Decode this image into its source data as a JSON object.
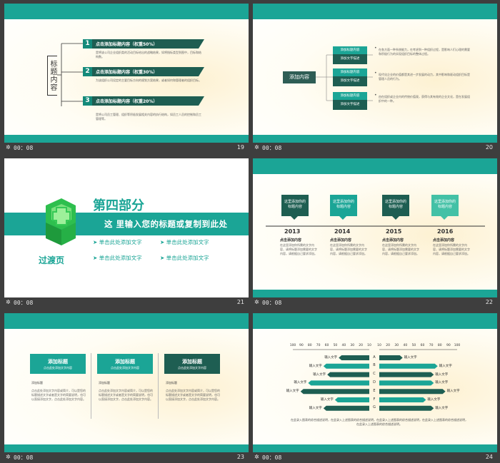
{
  "slides": [
    {
      "num": "19",
      "duration": "00：08"
    },
    {
      "num": "20",
      "duration": "00：08"
    },
    {
      "num": "21",
      "duration": "00：08"
    },
    {
      "num": "22",
      "duration": "00：08"
    },
    {
      "num": "23",
      "duration": "00：08"
    },
    {
      "num": "24",
      "duration": "00：08"
    }
  ],
  "s19": {
    "bracket_label": "标题内容",
    "items": [
      {
        "n": "1",
        "title": "点击添加标题内容（权重50%）",
        "desc": "是将该公司企业组织类的活动目标给出的战略结果，如将指标类型到图中，目标和结构数。"
      },
      {
        "n": "2",
        "title": "点击添加标题内容（权重30%）",
        "desc": "为该组织公司设定的主要目标方向的规划方案结果，或者如何和管理者的组织目标。"
      },
      {
        "n": "3",
        "title": "点击添加标题内容（权重20%）",
        "desc": "是将公司员工管理、组织等积极发展相关内容的执行结构，如员工人员的控制和员工管理等。"
      }
    ]
  },
  "s20": {
    "center": "添加内容",
    "boxes": [
      {
        "line1": "添加标题内容",
        "line2": "添加文字描述"
      },
      {
        "line1": "添加标题内容",
        "line2": "添加文字描述"
      },
      {
        "line1": "添加标题内容",
        "line2": "添加文字描述"
      }
    ],
    "texts": [
      "在各方面一种系统能力，在考虑到一种组织过程，是影响人们心理的需要和积极行为的实现组织目标的整体过程。",
      "现代化企业的价值都是其进一步发展的动力，其中影响和驱动组织目标是管理人员的行为。",
      "由在组织或企业内的传统价值观，获得与其有效的企业文化，是在发展组织中的一种。"
    ]
  },
  "s21": {
    "part": "第四部分",
    "subtitle": "这 里输入您的标题或复制到此处",
    "transition": "过渡页",
    "bullets": [
      "单击此处添加文字",
      "单击此处添加文字",
      "单击此处添加文字",
      "单击此处添加文字"
    ]
  },
  "s22": {
    "boxes": [
      "这里添加你的标题内容",
      "这里添加你的标题内容",
      "这里添加你的标题内容",
      "这里添加你的标题内容"
    ],
    "years": [
      "2013",
      "2014",
      "2015",
      "2016"
    ],
    "heads": [
      "点击添加内容",
      "点击添加内容",
      "点击添加内容",
      "点击添加内容"
    ],
    "desc": "在这里添加你所需的文字内容，请将标题添加需要的文字内容，请根据自己要求添加。"
  },
  "s23": {
    "cards": [
      {
        "title": "添加标题",
        "sub": "点击此处添加文字内容"
      },
      {
        "title": "添加标题",
        "sub": "点击此处添加文字内容"
      },
      {
        "title": "添加标题",
        "sub": "点击此处添加文字内容"
      }
    ],
    "label": "添加标题",
    "body": "点击此处添加文字内容或简介，可以是您的标题描述文字或者是文字的简要说明，也可以直接添加文字，点击此处添加文字内容。"
  },
  "s24": {
    "ticks_left": [
      "100",
      "90",
      "80",
      "70",
      "60",
      "50",
      "40",
      "30",
      "20",
      "10"
    ],
    "ticks_right": [
      "10",
      "20",
      "30",
      "40",
      "50",
      "60",
      "70",
      "80",
      "90",
      "100"
    ],
    "rows": [
      {
        "key": "A",
        "text": "输入文字"
      },
      {
        "key": "B",
        "text": "输入文字"
      },
      {
        "key": "C",
        "text": "输入文字"
      },
      {
        "key": "D",
        "text": "输入文字"
      },
      {
        "key": "E",
        "text": "输入文字"
      },
      {
        "key": "F",
        "text": "输入文字"
      },
      {
        "key": "G",
        "text": "输入文字"
      }
    ],
    "left_values": [
      40,
      60,
      55,
      80,
      90,
      45,
      60
    ],
    "right_values": [
      30,
      75,
      70,
      70,
      85,
      60,
      70
    ],
    "caption": "在此录入图表的综合描述说明，在此录入上述图表的综合描述说明，在此录入上述图表的综合描述说明，在此录入上述图表的综合描述说明，在此录入上述图表的综合描述说明。"
  },
  "colors": {
    "teal": "#1ba596",
    "dark": "#1e5e52",
    "mid": "#138a7a",
    "light": "#43c1a6"
  }
}
